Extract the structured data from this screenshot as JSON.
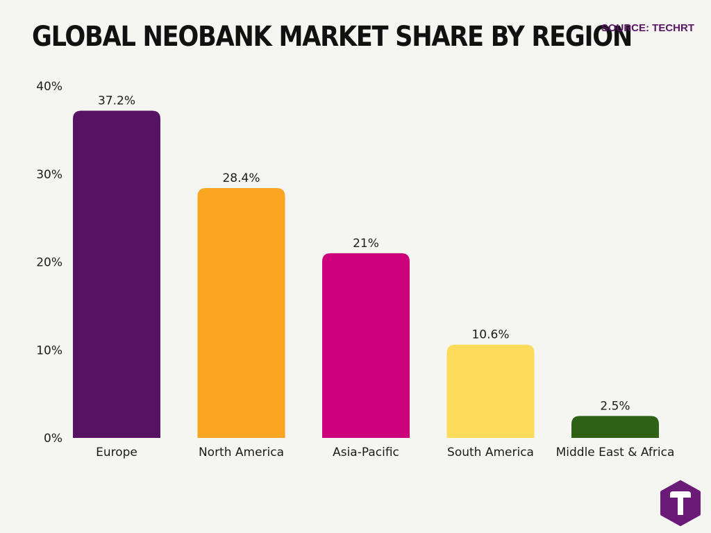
{
  "header": {
    "title": "GLOBAL NEOBANK MARKET SHARE BY REGION",
    "source": "SOURCE: TECHRT"
  },
  "chart_data": {
    "type": "bar",
    "title": "GLOBAL NEOBANK MARKET SHARE BY REGION",
    "xlabel": "",
    "ylabel": "",
    "categories": [
      "Europe",
      "North America",
      "Asia-Pacific",
      "South America",
      "Middle East & Africa"
    ],
    "values": [
      37.2,
      28.4,
      21,
      10.6,
      2.5
    ],
    "value_labels": [
      "37.2%",
      "28.4%",
      "21%",
      "10.6%",
      "2.5%"
    ],
    "colors": [
      "#561363",
      "#fba523",
      "#cc007a",
      "#fddc5c",
      "#2e6116"
    ],
    "ylim": [
      0,
      40
    ],
    "yticks": [
      0,
      10,
      20,
      30,
      40
    ],
    "ytick_labels": [
      "0%",
      "10%",
      "20%",
      "30%",
      "40%"
    ],
    "grid": false,
    "legend": "none"
  },
  "logo": {
    "icon": "techrt-t-logo-icon",
    "color": "#6b1a78"
  }
}
